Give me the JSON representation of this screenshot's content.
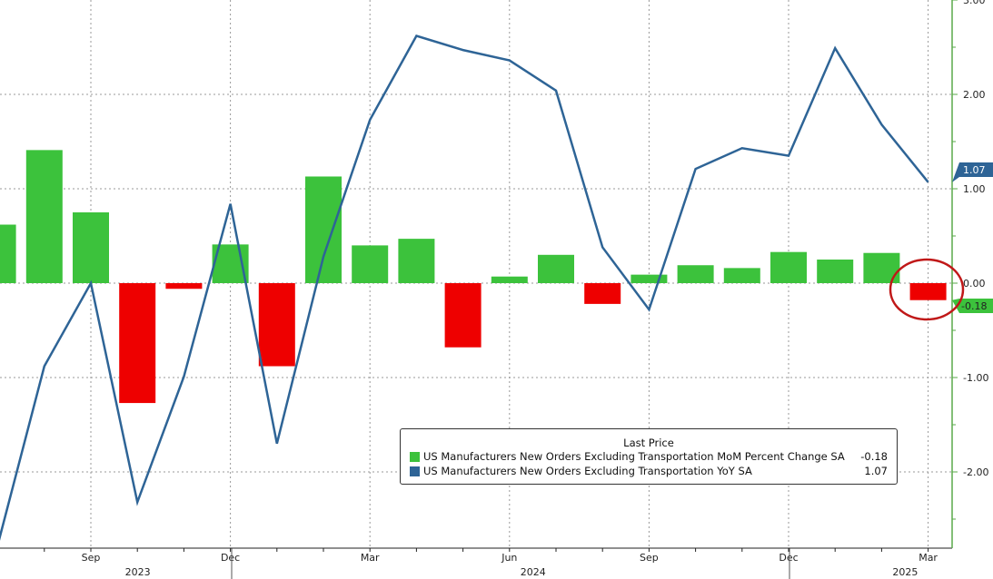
{
  "chart_data": {
    "type": "bar+line",
    "title": "",
    "x": [
      "Jul 2023",
      "Aug 2023",
      "Sep 2023",
      "Oct 2023",
      "Nov 2023",
      "Dec 2023",
      "Jan 2024",
      "Feb 2024",
      "Mar 2024",
      "Apr 2024",
      "May 2024",
      "Jun 2024",
      "Jul 2024",
      "Aug 2024",
      "Sep 2024",
      "Oct 2024",
      "Nov 2024",
      "Dec 2024",
      "Jan 2025",
      "Feb 2025",
      "Mar 2025"
    ],
    "x_tick_labels": [
      {
        "label": "Sep",
        "index": 2
      },
      {
        "label": "Dec",
        "index": 5
      },
      {
        "label": "Mar",
        "index": 8
      },
      {
        "label": "Jun",
        "index": 11
      },
      {
        "label": "Sep",
        "index": 14
      },
      {
        "label": "Dec",
        "index": 17
      },
      {
        "label": "Mar",
        "index": 20
      }
    ],
    "year_labels": [
      {
        "label": "2023",
        "index": 2.5
      },
      {
        "label": "2024",
        "index": 11
      },
      {
        "label": "2025",
        "index": 19
      }
    ],
    "ylim": [
      -2.8,
      3.0
    ],
    "y_ticks": [
      3.0,
      2.0,
      1.0,
      0.0,
      -1.0,
      -2.0
    ],
    "y_tick_labels": [
      "3.00",
      "2.00",
      "1.00",
      "0.00",
      "-1.00",
      "-2.00"
    ],
    "series": [
      {
        "name": "US Manufacturers New Orders Excluding Transportation MoM Percent Change SA",
        "type": "bar",
        "last": "-0.18",
        "values": [
          0.62,
          1.41,
          0.75,
          -1.27,
          -0.06,
          0.41,
          -0.88,
          1.13,
          0.4,
          0.47,
          -0.68,
          0.07,
          0.3,
          -0.22,
          0.09,
          0.19,
          0.16,
          0.33,
          0.25,
          0.32,
          -0.18
        ]
      },
      {
        "name": "US Manufacturers New Orders Excluding Transportation YoY SA",
        "type": "line",
        "last": "1.07",
        "values": [
          -2.77,
          -0.88,
          0.0,
          -2.32,
          -0.99,
          0.84,
          -1.7,
          0.28,
          1.73,
          2.62,
          2.47,
          2.36,
          2.04,
          0.38,
          -0.28,
          1.21,
          1.43,
          1.35,
          2.49,
          1.68,
          1.07
        ]
      }
    ],
    "legend": {
      "title": "Last Price",
      "placement": "bottom-right"
    },
    "annotation": "red circle around Mar 2025 bar"
  },
  "colors": {
    "pos": "#3cc23c",
    "neg": "#ee0000",
    "line": "#2e6496",
    "axis": "#5aaa4a",
    "circle": "#c01818"
  }
}
